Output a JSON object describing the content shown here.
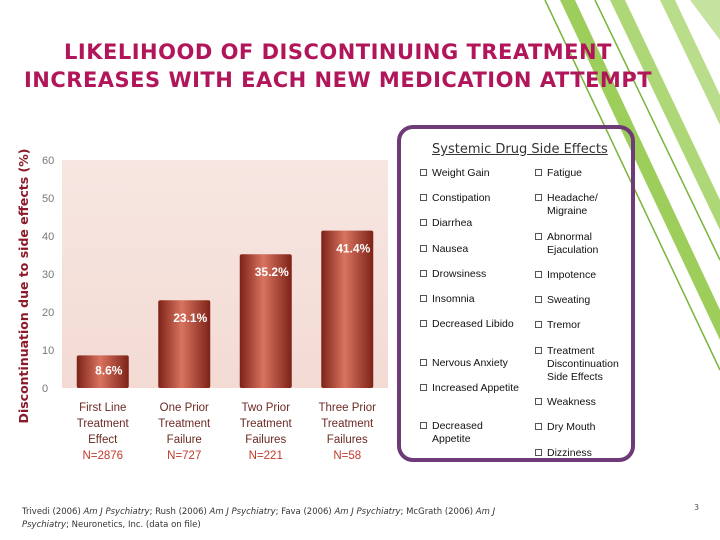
{
  "slide": {
    "title_line1": "LIKELIHOOD OF DISCONTINUING TREATMENT",
    "title_line2": "INCREASES WITH EACH NEW MEDICATION ATTEMPT",
    "page_number": "3",
    "citation": {
      "parts": [
        {
          "text": "Trivedi (2006) ",
          "italic": false
        },
        {
          "text": "Am J Psychiatry",
          "italic": true
        },
        {
          "text": "; Rush (2006) ",
          "italic": false
        },
        {
          "text": "Am J Psychiatry",
          "italic": true
        },
        {
          "text": "; Fava  (2006) ",
          "italic": false
        },
        {
          "text": "Am J Psychiatry",
          "italic": true
        },
        {
          "text": "; McGrath (2006) ",
          "italic": false
        },
        {
          "text": "Am J Psychiatry",
          "italic": true
        },
        {
          "text": "; Neuronetics, Inc. (data on file)",
          "italic": false
        }
      ]
    },
    "colors": {
      "title": "#b2165a",
      "bar": "#b23a2e",
      "bar_highlight": "#d9735f",
      "bar_label": "#ffffff",
      "category_label": "#6b2a22",
      "plot_bg": "#f3dbd4",
      "axis_label": "#8b1a2a",
      "box_border": "#6f3a78",
      "stripe": "#8cc63e"
    }
  },
  "side_effects": {
    "title": "Systemic Drug Side Effects",
    "left": [
      "Weight Gain",
      "Constipation",
      "Diarrhea",
      "Nausea",
      "Drowsiness",
      "Insomnia",
      "Decreased Libido",
      "Nervous Anxiety",
      "Increased Appetite",
      "Decreased Appetite"
    ],
    "right": [
      "Fatigue",
      "Headache/ Migraine",
      "Abnormal Ejaculation",
      "Impotence",
      "Sweating",
      "Tremor",
      "Treatment Discontinuation Side Effects",
      "Weakness",
      "Dry Mouth",
      "Dizziness"
    ]
  },
  "chart_data": {
    "type": "bar",
    "title": "",
    "xlabel": "",
    "ylabel": "Discontinuation due to side effects (%)",
    "ylim": [
      0,
      60
    ],
    "yticks": [
      "0",
      "10",
      "20",
      "30",
      "40",
      "50",
      "60"
    ],
    "categories": [
      {
        "lines": [
          "First Line",
          "Treatment",
          "Effect"
        ],
        "n": "N=2876"
      },
      {
        "lines": [
          "One Prior",
          "Treatment",
          "Failure"
        ],
        "n": "N=727"
      },
      {
        "lines": [
          "Two Prior",
          "Treatment",
          "Failures"
        ],
        "n": "N=221"
      },
      {
        "lines": [
          "Three Prior",
          "Treatment",
          "Failures"
        ],
        "n": "N=58"
      }
    ],
    "values": [
      8.6,
      23.1,
      35.2,
      41.4
    ],
    "value_labels": [
      "8.6%",
      "23.1%",
      "35.2%",
      "41.4%"
    ],
    "grid": false
  }
}
